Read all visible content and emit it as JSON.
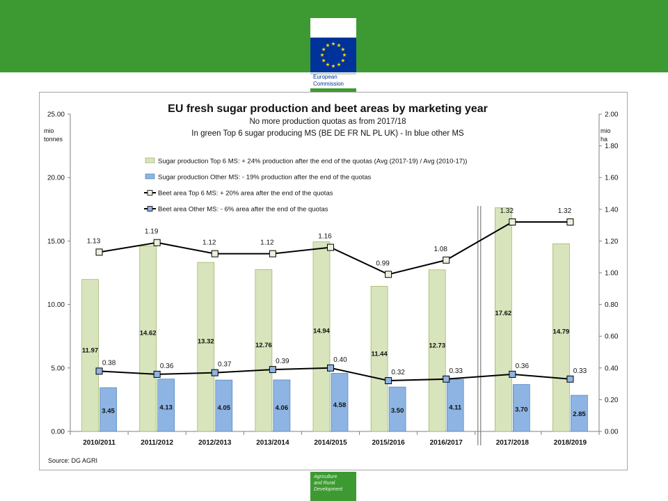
{
  "header": {
    "logo_line1": "European",
    "logo_line2": "Commission"
  },
  "footer": {
    "line1": "Agriculture",
    "line2": "and Rural",
    "line3": "Development"
  },
  "colors": {
    "band_green": "#3d9a33",
    "bar_green": "#d8e4bc",
    "bar_green_stroke": "#98b060",
    "bar_blue": "#8db4e2",
    "bar_blue_stroke": "#4f81bd",
    "eu_blue": "#003399",
    "eu_star": "#ffdd00"
  },
  "chart_data": {
    "type": "bar",
    "title": "EU fresh sugar production and beet areas by marketing year",
    "subtitle_lines": [
      "No more production quotas as from 2017/18",
      "In green Top 6 sugar producing MS (BE DE FR NL PL UK)  - In blue other MS"
    ],
    "source": "Source: DG AGRI",
    "categories": [
      "2010/2011",
      "2011/2012",
      "2012/2013",
      "2013/2014",
      "2014/2015",
      "2015/2016",
      "2016/2017",
      "2017/2018",
      "2018/2019"
    ],
    "y_left": {
      "label_line1": "mio",
      "label_line2": "tonnes",
      "min": 0,
      "max": 25,
      "step": 5,
      "tick_labels": [
        "0.00",
        "5.00",
        "10.00",
        "15.00",
        "20.00",
        "25.00"
      ]
    },
    "y_right": {
      "label_line1": "mio",
      "label_line2": "ha",
      "min": 0,
      "max": 2,
      "step": 0.2,
      "tick_labels": [
        "0.00",
        "0.20",
        "0.40",
        "0.60",
        "0.80",
        "1.00",
        "1.20",
        "1.40",
        "1.60",
        "1.80",
        "2.00"
      ]
    },
    "series": [
      {
        "name": "Sugar production Top 6 MS: + 24% production after the end of the quotas  (Avg (2017-19) / Avg (2010-17))",
        "kind": "bar",
        "axis": "left",
        "color": "#d8e4bc",
        "values": [
          11.97,
          14.62,
          13.32,
          12.76,
          14.94,
          11.44,
          12.73,
          17.62,
          14.79
        ],
        "labels": [
          "11.97",
          "14.62",
          "13.32",
          "12.76",
          "14.94",
          "11.44",
          "12.73",
          "17.62",
          "14.79"
        ]
      },
      {
        "name": "Sugar production Other MS: - 19% production after the end of the quotas",
        "kind": "bar",
        "axis": "left",
        "color": "#8db4e2",
        "values": [
          3.45,
          4.13,
          4.05,
          4.06,
          4.58,
          3.5,
          4.11,
          3.7,
          2.85
        ],
        "labels": [
          "3.45",
          "4.13",
          "4.05",
          "4.06",
          "4.58",
          "3.50",
          "4.11",
          "3.70",
          "2.85"
        ]
      },
      {
        "name": "Beet area Top 6 MS: + 20% area after the end of the quotas",
        "kind": "line",
        "axis": "right",
        "marker_color": "#ebf1de",
        "values": [
          1.13,
          1.19,
          1.12,
          1.12,
          1.16,
          0.99,
          1.08,
          1.32,
          1.32
        ],
        "labels": [
          "1.13",
          "1.19",
          "1.12",
          "1.12",
          "1.16",
          "0.99",
          "1.08",
          "1.32",
          "1.32"
        ]
      },
      {
        "name": "Beet area Other MS: - 6% area after the end of the quotas",
        "kind": "line",
        "axis": "right",
        "marker_color": "#8db4e2",
        "values": [
          0.38,
          0.36,
          0.37,
          0.39,
          0.4,
          0.32,
          0.33,
          0.36,
          0.33
        ],
        "labels": [
          "0.38",
          "0.36",
          "0.37",
          "0.39",
          "0.40",
          "0.32",
          "0.33",
          "0.36",
          "0.33"
        ]
      }
    ],
    "quota_break_after_category": "2016/2017",
    "legend_position": "top-left",
    "grid": false
  }
}
